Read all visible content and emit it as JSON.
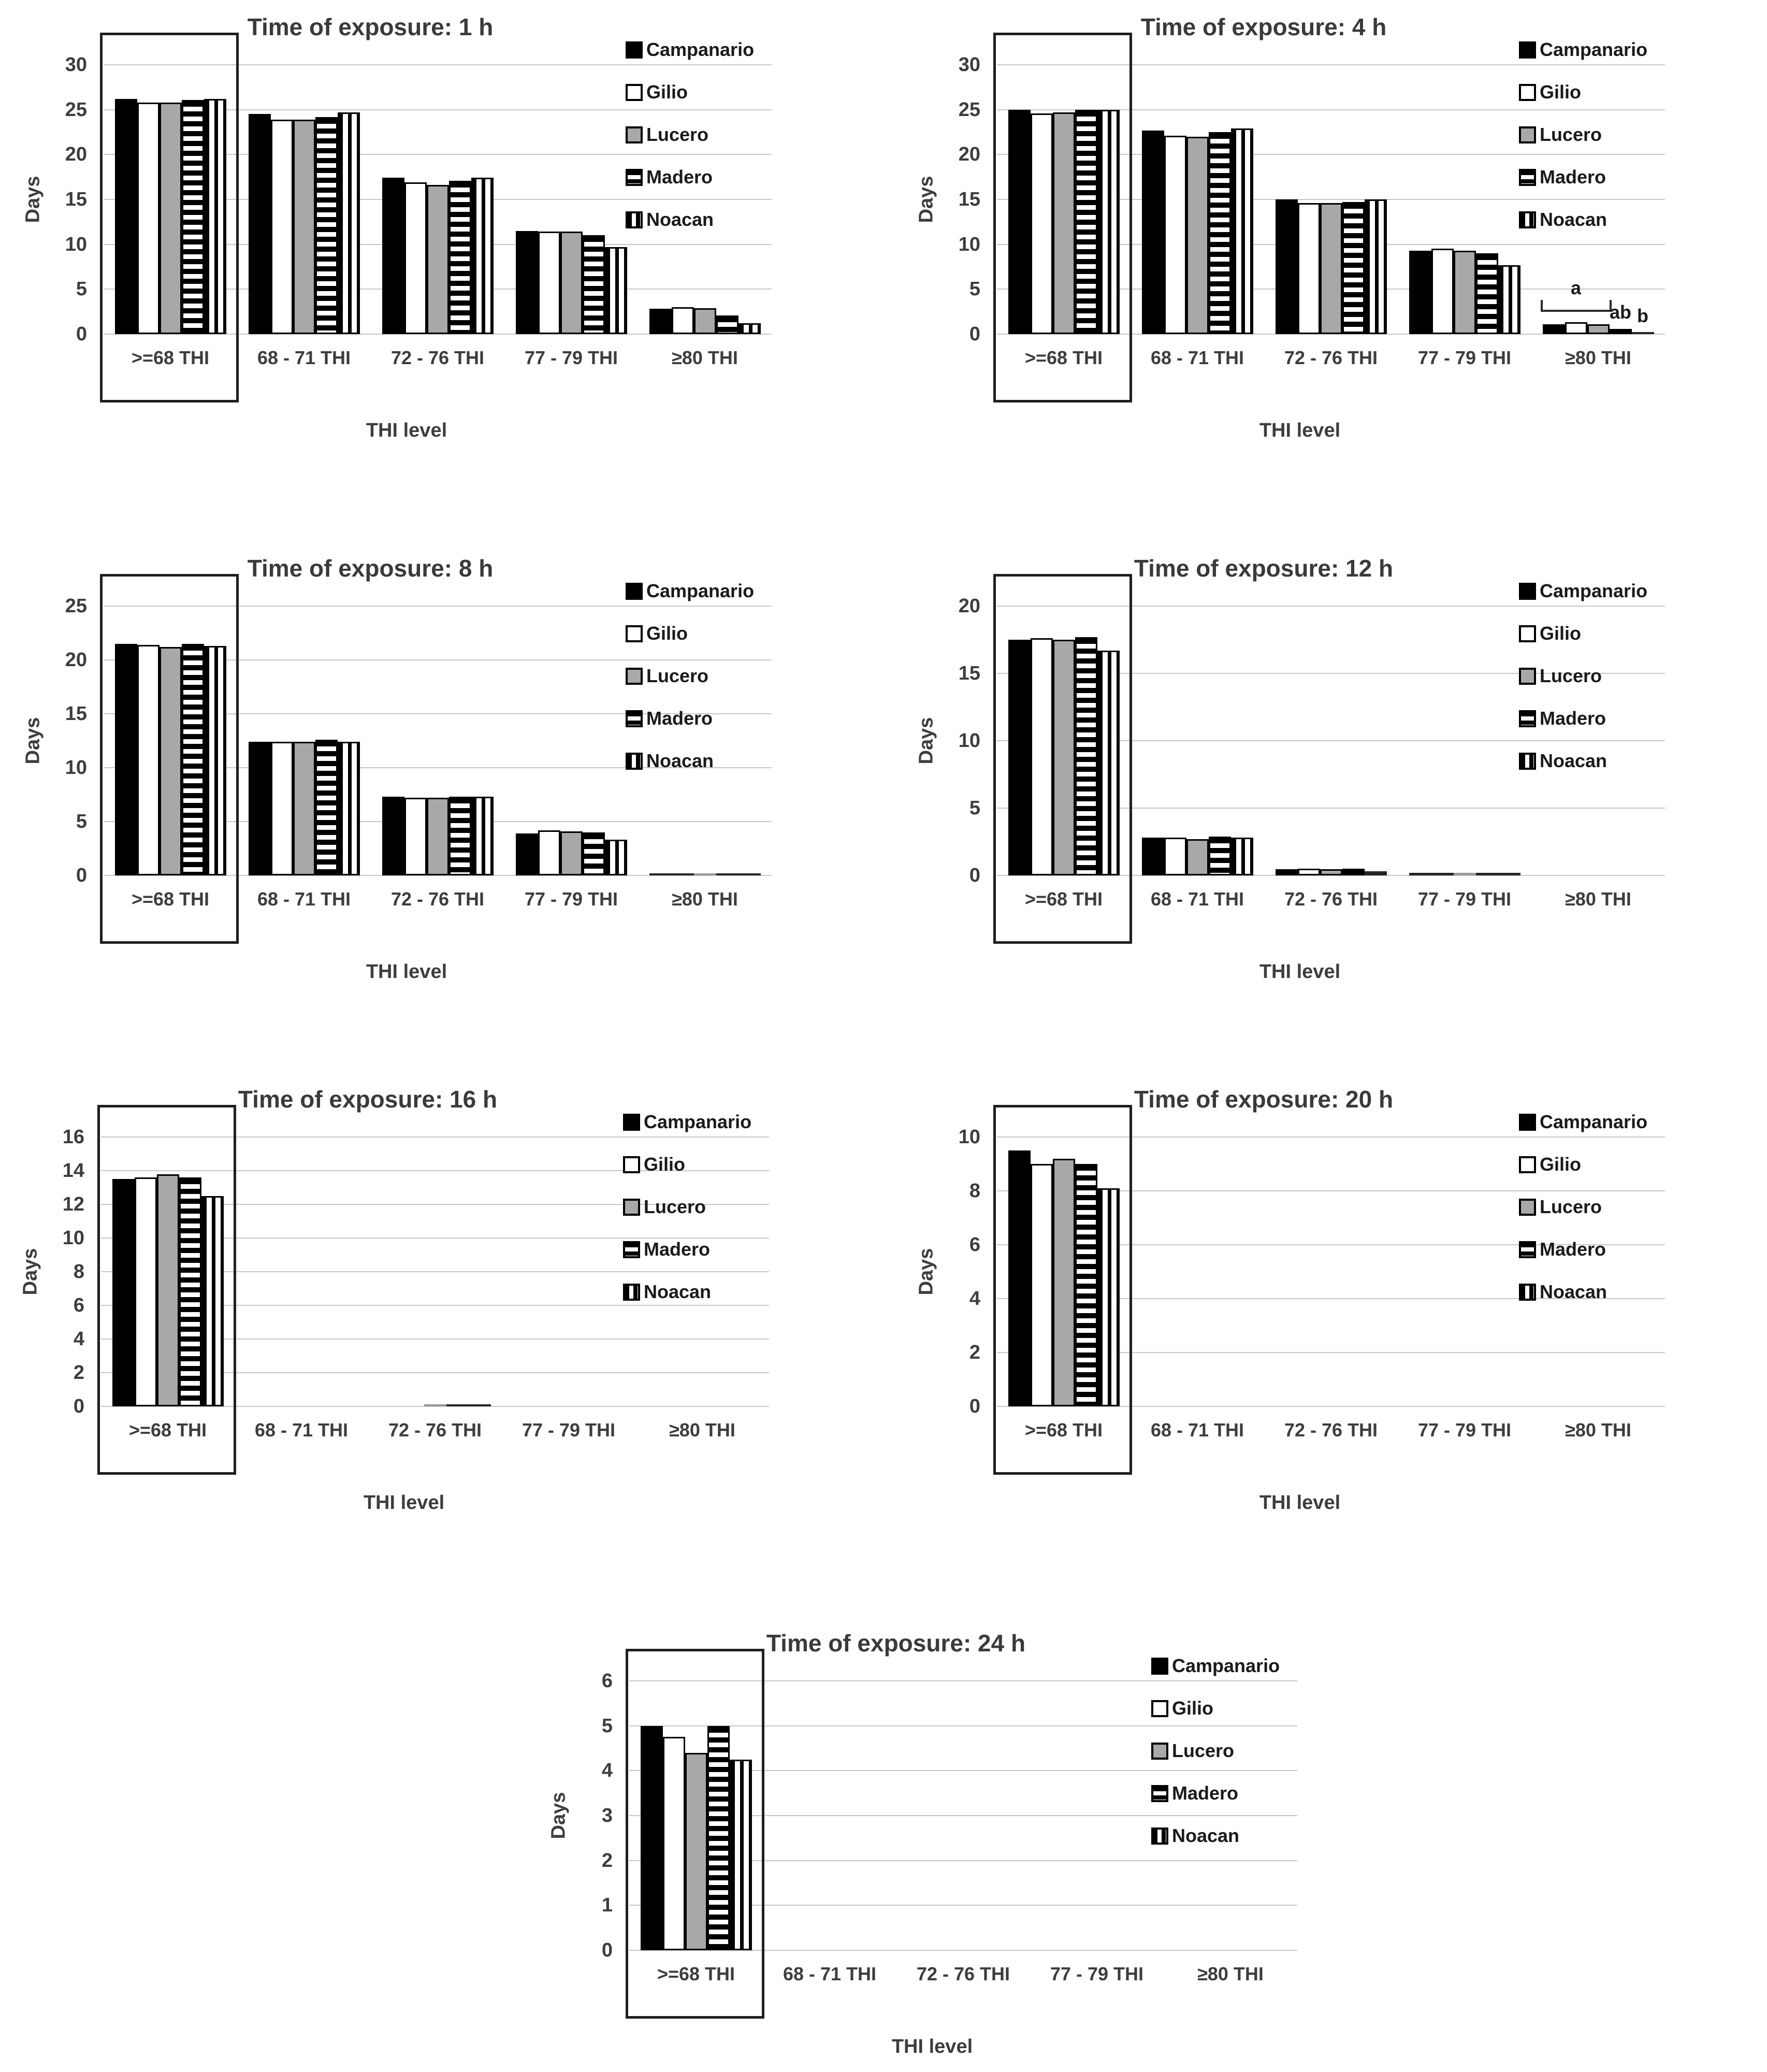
{
  "figure": {
    "background": "#ffffff",
    "grid_color": "#c7c7c7",
    "text_color": "#3d3d3d",
    "highlight_box_color": "#1f1f1f",
    "series_legend": [
      "Campanario",
      "Gilio",
      "Lucero",
      "Madero",
      "Noacan"
    ],
    "series_patterns": [
      "solid-black",
      "white-outline",
      "solid-gray",
      "horizontal-stripes",
      "vertical-stripes"
    ],
    "series_colors": [
      "#000000",
      "#ffffff",
      "#a8a8a8",
      "#000000",
      "#000000"
    ]
  },
  "chart_data": [
    {
      "type": "bar",
      "title": "Time of exposure: 1 h",
      "xlabel": "THI level",
      "ylabel": "Days",
      "categories": [
        ">=68 THI",
        "68 - 71 THI",
        "72 - 76 THI",
        "77 - 79 THI",
        "≥80 THI"
      ],
      "ylim": [
        0,
        30
      ],
      "yticks": [
        0,
        5,
        10,
        15,
        20,
        25,
        30
      ],
      "grid": true,
      "legend_position": "right-inside",
      "highlight_box": {
        "category": 0
      },
      "series": [
        {
          "name": "Campanario",
          "values": [
            26.2,
            24.5,
            17.4,
            11.5,
            2.8
          ]
        },
        {
          "name": "Gilio",
          "values": [
            25.8,
            23.9,
            16.9,
            11.4,
            3.0
          ]
        },
        {
          "name": "Lucero",
          "values": [
            25.8,
            23.9,
            16.6,
            11.4,
            2.9
          ]
        },
        {
          "name": "Madero",
          "values": [
            26.1,
            24.2,
            17.1,
            11.0,
            2.1
          ]
        },
        {
          "name": "Noacan",
          "values": [
            26.2,
            24.7,
            17.4,
            9.7,
            1.2
          ]
        }
      ]
    },
    {
      "type": "bar",
      "title": "Time of exposure: 4 h",
      "xlabel": "THI level",
      "ylabel": "Days",
      "categories": [
        ">=68 THI",
        "68 - 71 THI",
        "72 - 76 THI",
        "77 - 79 THI",
        "≥80 THI"
      ],
      "ylim": [
        0,
        30
      ],
      "yticks": [
        0,
        5,
        10,
        15,
        20,
        25,
        30
      ],
      "grid": true,
      "legend_position": "right-inside",
      "highlight_box": {
        "category": 0
      },
      "series": [
        {
          "name": "Campanario",
          "values": [
            25.0,
            22.7,
            15.0,
            9.3,
            1.1
          ]
        },
        {
          "name": "Gilio",
          "values": [
            24.6,
            22.1,
            14.6,
            9.5,
            1.3
          ]
        },
        {
          "name": "Lucero",
          "values": [
            24.7,
            22.0,
            14.6,
            9.3,
            1.1
          ]
        },
        {
          "name": "Madero",
          "values": [
            25.0,
            22.5,
            14.7,
            9.0,
            0.6
          ]
        },
        {
          "name": "Noacan",
          "values": [
            25.0,
            22.9,
            15.0,
            7.7,
            0.25
          ]
        }
      ],
      "annotations": [
        {
          "type": "bracket",
          "label": "a",
          "category": 4,
          "bar_start": 0,
          "bar_end": 2,
          "y_bottom": 2.5,
          "y_top": 3.8
        },
        {
          "type": "label",
          "label": "ab",
          "category": 4,
          "bar": 3,
          "y": 1.35
        },
        {
          "type": "label",
          "label": "b",
          "category": 4,
          "bar": 4,
          "y": 0.9
        }
      ]
    },
    {
      "type": "bar",
      "title": "Time of exposure: 8 h",
      "xlabel": "THI level",
      "ylabel": "Days",
      "categories": [
        ">=68 THI",
        "68 - 71 THI",
        "72 - 76 THI",
        "77 - 79 THI",
        "≥80 THI"
      ],
      "ylim": [
        0,
        25
      ],
      "yticks": [
        0,
        5,
        10,
        15,
        20,
        25
      ],
      "grid": true,
      "legend_position": "right-inside",
      "highlight_box": {
        "category": 0
      },
      "series": [
        {
          "name": "Campanario",
          "values": [
            21.5,
            12.4,
            7.3,
            3.9,
            0.2
          ]
        },
        {
          "name": "Gilio",
          "values": [
            21.4,
            12.4,
            7.2,
            4.2,
            0.2
          ]
        },
        {
          "name": "Lucero",
          "values": [
            21.2,
            12.4,
            7.2,
            4.1,
            0.2
          ]
        },
        {
          "name": "Madero",
          "values": [
            21.5,
            12.6,
            7.3,
            4.0,
            0.2
          ]
        },
        {
          "name": "Noacan",
          "values": [
            21.3,
            12.4,
            7.3,
            3.3,
            0.2
          ]
        }
      ]
    },
    {
      "type": "bar",
      "title": "Time of exposure: 12 h",
      "xlabel": "THI level",
      "ylabel": "Days",
      "categories": [
        ">=68 THI",
        "68 - 71 THI",
        "72 - 76 THI",
        "77 - 79 THI",
        "≥80 THI"
      ],
      "ylim": [
        0,
        20
      ],
      "yticks": [
        0,
        5,
        10,
        15,
        20
      ],
      "grid": true,
      "legend_position": "right-inside",
      "highlight_box": {
        "category": 0
      },
      "series": [
        {
          "name": "Campanario",
          "values": [
            17.5,
            2.8,
            0.45,
            0.2,
            0
          ]
        },
        {
          "name": "Gilio",
          "values": [
            17.6,
            2.8,
            0.5,
            0.2,
            0
          ]
        },
        {
          "name": "Lucero",
          "values": [
            17.5,
            2.7,
            0.45,
            0.2,
            0
          ]
        },
        {
          "name": "Madero",
          "values": [
            17.7,
            2.9,
            0.5,
            0.2,
            0
          ]
        },
        {
          "name": "Noacan",
          "values": [
            16.7,
            2.8,
            0.3,
            0.2,
            0
          ]
        }
      ]
    },
    {
      "type": "bar",
      "title": "Time of exposure: 16 h",
      "xlabel": "THI level",
      "ylabel": "Days",
      "categories": [
        ">=68 THI",
        "68 - 71 THI",
        "72 - 76 THI",
        "77 - 79 THI",
        "≥80 THI"
      ],
      "ylim": [
        0,
        16
      ],
      "yticks": [
        0,
        2,
        4,
        6,
        8,
        10,
        12,
        14,
        16
      ],
      "grid": true,
      "legend_position": "right-inside",
      "highlight_box": {
        "category": 0
      },
      "series": [
        {
          "name": "Campanario",
          "values": [
            13.5,
            0,
            0,
            0,
            0
          ]
        },
        {
          "name": "Gilio",
          "values": [
            13.6,
            0,
            0,
            0,
            0
          ]
        },
        {
          "name": "Lucero",
          "values": [
            13.8,
            0,
            0.1,
            0,
            0
          ]
        },
        {
          "name": "Madero",
          "values": [
            13.6,
            0,
            0.1,
            0,
            0
          ]
        },
        {
          "name": "Noacan",
          "values": [
            12.5,
            0,
            0.1,
            0,
            0
          ]
        }
      ]
    },
    {
      "type": "bar",
      "title": "Time of exposure: 20 h",
      "xlabel": "THI level",
      "ylabel": "Days",
      "categories": [
        ">=68 THI",
        "68 - 71 THI",
        "72 - 76 THI",
        "77 - 79 THI",
        "≥80 THI"
      ],
      "ylim": [
        0,
        10
      ],
      "yticks": [
        0,
        2,
        4,
        6,
        8,
        10
      ],
      "grid": true,
      "legend_position": "right-inside",
      "highlight_box": {
        "category": 0
      },
      "series": [
        {
          "name": "Campanario",
          "values": [
            9.5,
            0,
            0,
            0,
            0
          ]
        },
        {
          "name": "Gilio",
          "values": [
            9.0,
            0,
            0,
            0,
            0
          ]
        },
        {
          "name": "Lucero",
          "values": [
            9.2,
            0,
            0,
            0,
            0
          ]
        },
        {
          "name": "Madero",
          "values": [
            9.0,
            0,
            0,
            0,
            0
          ]
        },
        {
          "name": "Noacan",
          "values": [
            8.1,
            0,
            0,
            0,
            0
          ]
        }
      ]
    },
    {
      "type": "bar",
      "title": "Time of exposure: 24 h",
      "xlabel": "THI level",
      "ylabel": "Days",
      "categories": [
        ">=68 THI",
        "68 - 71 THI",
        "72 - 76 THI",
        "77 - 79 THI",
        "≥80 THI"
      ],
      "ylim": [
        0,
        6
      ],
      "yticks": [
        0,
        1,
        2,
        3,
        4,
        5,
        6
      ],
      "grid": true,
      "legend_position": "right-inside",
      "highlight_box": {
        "category": 0
      },
      "series": [
        {
          "name": "Campanario",
          "values": [
            5.0,
            0,
            0,
            0,
            0
          ]
        },
        {
          "name": "Gilio",
          "values": [
            4.75,
            0,
            0,
            0,
            0
          ]
        },
        {
          "name": "Lucero",
          "values": [
            4.4,
            0,
            0,
            0,
            0
          ]
        },
        {
          "name": "Madero",
          "values": [
            5.0,
            0,
            0,
            0,
            0
          ]
        },
        {
          "name": "Noacan",
          "values": [
            4.25,
            0,
            0,
            0,
            0
          ]
        }
      ]
    }
  ]
}
